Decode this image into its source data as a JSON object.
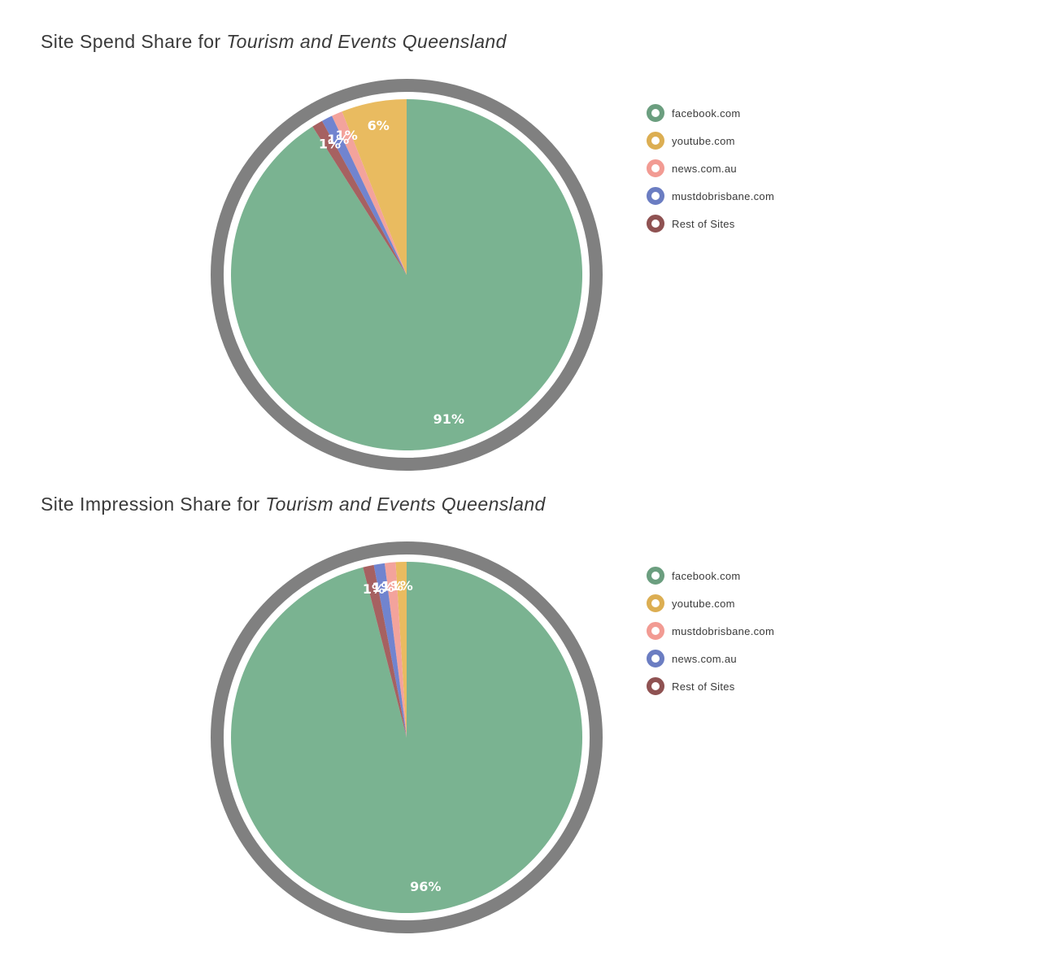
{
  "charts": [
    {
      "title_prefix": "Site Spend Share for ",
      "title_org": "Tourism and Events Queensland"
    },
    {
      "title_prefix": "Site Impression Share for ",
      "title_org": "Tourism and Events Queensland"
    }
  ],
  "chart_data": [
    {
      "type": "pie",
      "title": "Site Spend Share for Tourism and Events Queensland",
      "legend_position": "right",
      "series": [
        {
          "name": "facebook.com",
          "value": 91,
          "label": "91%",
          "color": "#7ab391"
        },
        {
          "name": "youtube.com",
          "value": 6,
          "label": "6%",
          "color": "#e9bb60"
        },
        {
          "name": "news.com.au",
          "value": 1,
          "label": "1%",
          "color": "#f3a39c"
        },
        {
          "name": "mustdobrisbane.com",
          "value": 1,
          "label": "1%",
          "color": "#7184cf"
        },
        {
          "name": "Rest of Sites",
          "value": 1,
          "label": "1%",
          "color": "#a66161"
        }
      ]
    },
    {
      "type": "pie",
      "title": "Site Impression Share for Tourism and Events Queensland",
      "legend_position": "right",
      "series": [
        {
          "name": "facebook.com",
          "value": 96,
          "label": "96%",
          "color": "#7ab391"
        },
        {
          "name": "youtube.com",
          "value": 1,
          "label": "1%",
          "color": "#e9bb60"
        },
        {
          "name": "mustdobrisbane.com",
          "value": 1,
          "label": "1%",
          "color": "#f3a39c"
        },
        {
          "name": "news.com.au",
          "value": 1,
          "label": "1%",
          "color": "#7184cf"
        },
        {
          "name": "Rest of Sites",
          "value": 1,
          "label": "1%",
          "color": "#a66161"
        }
      ]
    }
  ],
  "legend_dot_colors": [
    "#6b9e7f",
    "#dcae52",
    "#f29b93",
    "#6b7dc2",
    "#8f5252"
  ],
  "outer_ring_color": "#808080"
}
